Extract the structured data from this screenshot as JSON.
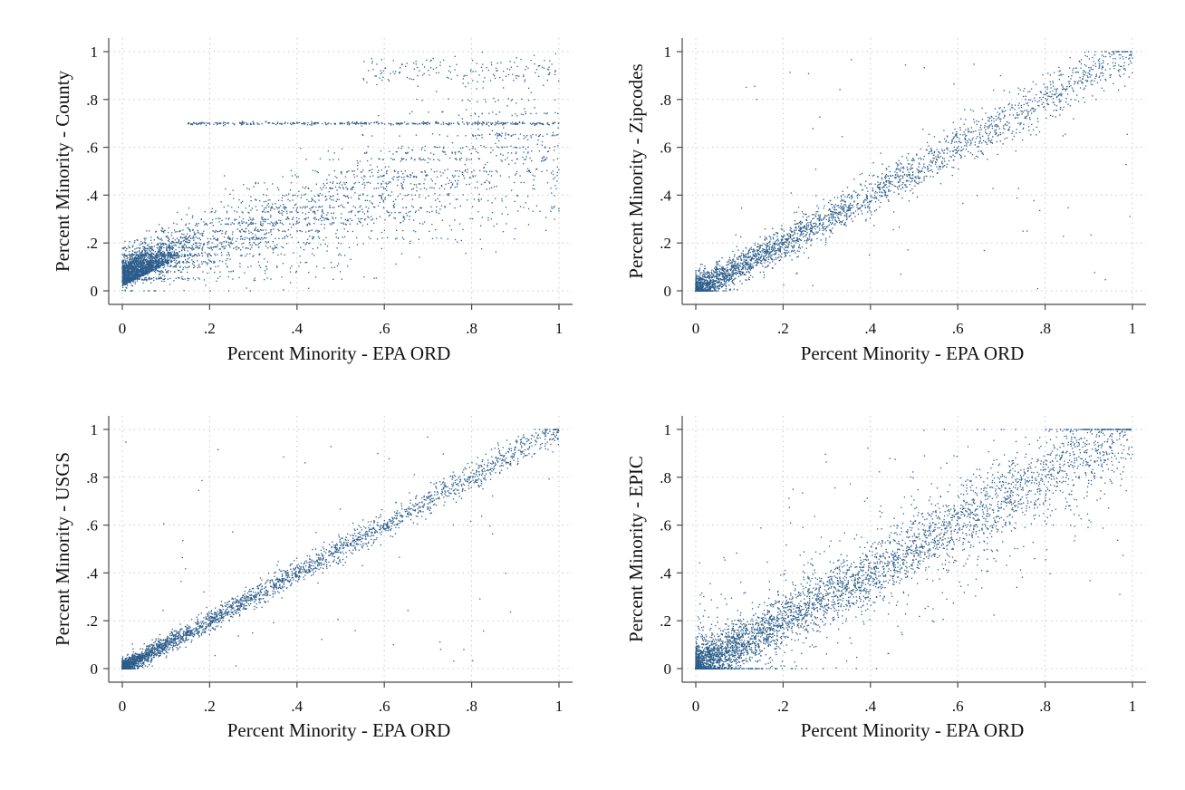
{
  "style": {
    "marker_color": "#2c5d8a",
    "grid_color": "#c9c9c9",
    "axis_color": "#4a4a4a"
  },
  "chart_data": [
    {
      "type": "scatter",
      "xlabel": "Percent Minority - EPA ORD",
      "ylabel": "Percent Minority - County",
      "xlim": [
        0,
        1
      ],
      "ylim": [
        0,
        1
      ],
      "xticks": [
        0,
        0.2,
        0.4,
        0.6,
        0.8,
        1
      ],
      "yticks": [
        0,
        0.2,
        0.4,
        0.6,
        0.8,
        1
      ],
      "xtick_labels": [
        "0",
        ".2",
        ".4",
        ".6",
        ".8",
        "1"
      ],
      "ytick_labels": [
        "0",
        ".2",
        ".4",
        ".6",
        ".8",
        "1"
      ],
      "grid": true,
      "pattern": "x and y positively correlated with large spread; dense mass near (0-0.15, 0-0.15); y values cluster in horizontal bands (county-level values), notably at about 0.70 across x 0.15-1.0",
      "sample_points": [
        [
          0.02,
          0.05
        ],
        [
          0.05,
          0.08
        ],
        [
          0.1,
          0.12
        ],
        [
          0.15,
          0.2
        ],
        [
          0.2,
          0.25
        ],
        [
          0.3,
          0.35
        ],
        [
          0.4,
          0.4
        ],
        [
          0.5,
          0.45
        ],
        [
          0.6,
          0.55
        ],
        [
          0.7,
          0.65
        ],
        [
          0.8,
          0.7
        ],
        [
          0.9,
          0.8
        ],
        [
          1.0,
          0.95
        ]
      ]
    },
    {
      "type": "scatter",
      "xlabel": "Percent Minority - EPA ORD",
      "ylabel": "Percent Minority - Zipcodes",
      "xlim": [
        0,
        1
      ],
      "ylim": [
        0,
        1
      ],
      "xticks": [
        0,
        0.2,
        0.4,
        0.6,
        0.8,
        1
      ],
      "yticks": [
        0,
        0.2,
        0.4,
        0.6,
        0.8,
        1
      ],
      "xtick_labels": [
        "0",
        ".2",
        ".4",
        ".6",
        ".8",
        "1"
      ],
      "ytick_labels": [
        "0",
        ".2",
        ".4",
        ".6",
        ".8",
        "1"
      ],
      "grid": true,
      "pattern": "points concentrated along the 45-degree line with moderate spread, densest at low values",
      "sample_points": [
        [
          0.01,
          0.01
        ],
        [
          0.05,
          0.05
        ],
        [
          0.1,
          0.1
        ],
        [
          0.2,
          0.2
        ],
        [
          0.3,
          0.3
        ],
        [
          0.4,
          0.4
        ],
        [
          0.5,
          0.5
        ],
        [
          0.6,
          0.6
        ],
        [
          0.7,
          0.7
        ],
        [
          0.8,
          0.8
        ],
        [
          0.9,
          0.9
        ],
        [
          1.0,
          1.0
        ]
      ]
    },
    {
      "type": "scatter",
      "xlabel": "Percent Minority - EPA ORD",
      "ylabel": "Percent Minority - USGS",
      "xlim": [
        0,
        1
      ],
      "ylim": [
        0,
        1
      ],
      "xticks": [
        0,
        0.2,
        0.4,
        0.6,
        0.8,
        1
      ],
      "yticks": [
        0,
        0.2,
        0.4,
        0.6,
        0.8,
        1
      ],
      "xtick_labels": [
        "0",
        ".2",
        ".4",
        ".6",
        ".8",
        "1"
      ],
      "ytick_labels": [
        "0",
        ".2",
        ".4",
        ".6",
        ".8",
        "1"
      ],
      "grid": true,
      "pattern": "points tightly concentrated along the 45-degree line with small spread",
      "sample_points": [
        [
          0.01,
          0.01
        ],
        [
          0.05,
          0.05
        ],
        [
          0.1,
          0.1
        ],
        [
          0.2,
          0.2
        ],
        [
          0.3,
          0.3
        ],
        [
          0.4,
          0.4
        ],
        [
          0.5,
          0.5
        ],
        [
          0.6,
          0.6
        ],
        [
          0.7,
          0.7
        ],
        [
          0.8,
          0.8
        ],
        [
          0.9,
          0.9
        ],
        [
          1.0,
          1.0
        ]
      ]
    },
    {
      "type": "scatter",
      "xlabel": "Percent Minority - EPA ORD",
      "ylabel": "Percent Minority - EPIC",
      "xlim": [
        0,
        1
      ],
      "ylim": [
        0,
        1
      ],
      "xticks": [
        0,
        0.2,
        0.4,
        0.6,
        0.8,
        1
      ],
      "yticks": [
        0,
        0.2,
        0.4,
        0.6,
        0.8,
        1
      ],
      "xtick_labels": [
        "0",
        ".2",
        ".4",
        ".6",
        ".8",
        "1"
      ],
      "ytick_labels": [
        "0",
        ".2",
        ".4",
        ".6",
        ".8",
        "1"
      ],
      "grid": true,
      "pattern": "points along the 45-degree line with wide scatter on both sides, dense near origin",
      "sample_points": [
        [
          0.01,
          0.01
        ],
        [
          0.05,
          0.05
        ],
        [
          0.1,
          0.1
        ],
        [
          0.2,
          0.2
        ],
        [
          0.3,
          0.3
        ],
        [
          0.4,
          0.4
        ],
        [
          0.5,
          0.5
        ],
        [
          0.6,
          0.6
        ],
        [
          0.7,
          0.7
        ],
        [
          0.8,
          0.8
        ],
        [
          0.9,
          0.9
        ],
        [
          1.0,
          1.0
        ]
      ]
    }
  ]
}
